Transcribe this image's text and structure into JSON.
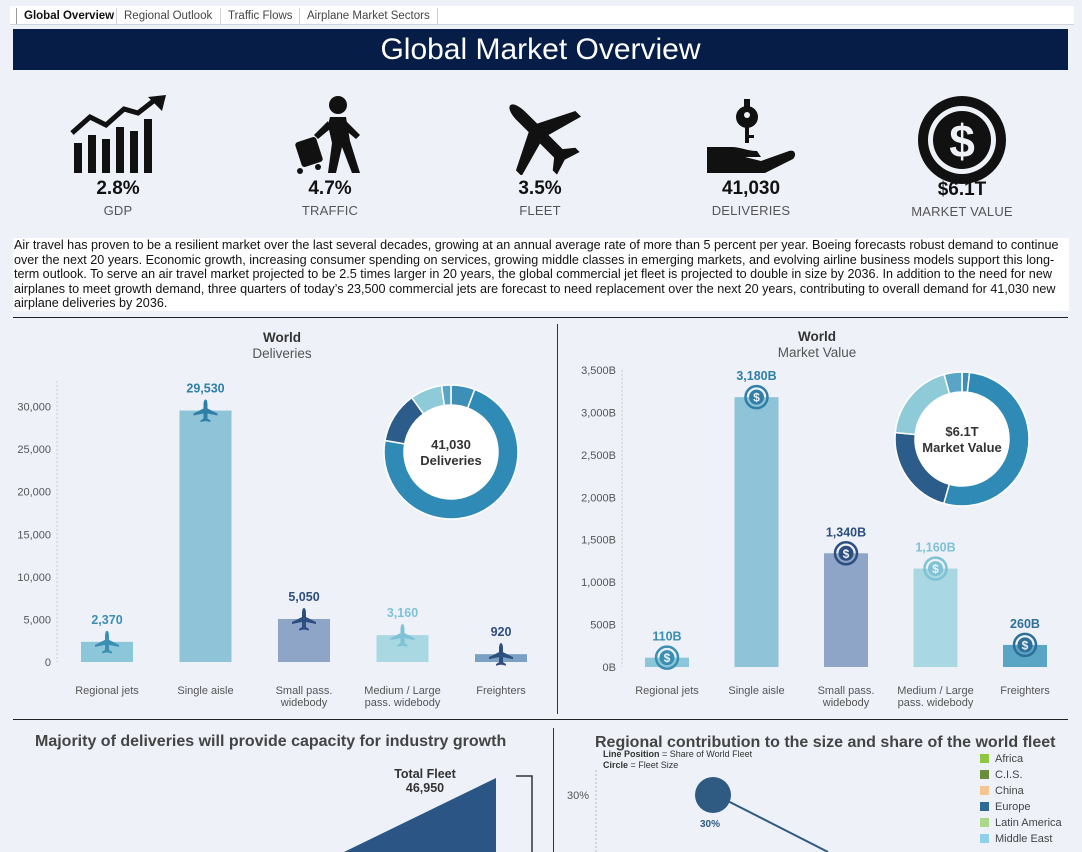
{
  "tabs": [
    "Global Overview",
    "Regional Outlook",
    "Traffic Flows",
    "Airplane Market Sectors"
  ],
  "title": "Global Market Overview",
  "kpis": [
    {
      "icon": "growth-chart-icon",
      "value": "2.8%",
      "label": "GDP"
    },
    {
      "icon": "traveler-luggage-icon",
      "value": "4.7%",
      "label": "TRAFFIC"
    },
    {
      "icon": "airplane-icon",
      "value": "3.5%",
      "label": "FLEET"
    },
    {
      "icon": "hand-with-key-icon",
      "value": "41,030",
      "label": "DELIVERIES"
    },
    {
      "icon": "dollar-coin-icon",
      "value": "$6.1T",
      "label": "MARKET VALUE"
    }
  ],
  "description": "Air travel has proven to be a resilient market over the last several decades, growing at an annual average rate of more than 5 percent per year. Boeing forecasts robust demand to continue over the next 20 years. Economic growth, increasing consumer spending on services, growing middle classes in emerging markets, and evolving airline business models support this long-term outlook. To serve an air travel market projected to be 2.5 times larger in 20 years, the global commercial jet fleet is projected to double in size by 2036. In addition to the need for new airplanes to meet growth demand, three quarters of today’s 23,500 commercial jets are forecast to need replacement over the next 20 years, contributing to overall demand for 41,030 new airplane deliveries by 2036.",
  "chart_data": [
    {
      "type": "bar",
      "title": "World",
      "subtitle": "Deliveries",
      "categories": [
        "Regional jets",
        "Single aisle",
        "Small pass. widebody",
        "Medium / Large pass. widebody",
        "Freighters"
      ],
      "values": [
        2370,
        29530,
        5050,
        3160,
        920
      ],
      "value_labels": [
        "2,370",
        "29,530",
        "5,050",
        "3,160",
        "920"
      ],
      "colors": [
        "#8bc7d8",
        "#8fc3d8",
        "#8ea5c7",
        "#a9d7e2",
        "#7aa0c4"
      ],
      "label_colors": [
        "#3a8fb2",
        "#2f7fa8",
        "#2c4f80",
        "#7ec2d6",
        "#2c4f80"
      ],
      "yticks": [
        0,
        5000,
        10000,
        15000,
        20000,
        25000,
        30000
      ],
      "ytick_labels": [
        "0",
        "5,000",
        "10,000",
        "15,000",
        "20,000",
        "25,000",
        "30,000"
      ],
      "ylim": [
        0,
        33000
      ],
      "marker_icon": "airplane-icon",
      "donut": {
        "center_value": "41,030",
        "center_label": "Deliveries",
        "values": [
          2370,
          29530,
          5050,
          3160,
          920
        ],
        "colors": [
          "#3e8fb7",
          "#2f8bb5",
          "#2b5c8a",
          "#8fcad8",
          "#5aa4c6"
        ]
      }
    },
    {
      "type": "bar",
      "title": "World",
      "subtitle": "Market Value",
      "categories": [
        "Regional jets",
        "Single aisle",
        "Small pass. widebody",
        "Medium / Large pass. widebody",
        "Freighters"
      ],
      "values": [
        110,
        3180,
        1340,
        1160,
        260
      ],
      "value_labels": [
        "110B",
        "3,180B",
        "1,340B",
        "1,160B",
        "260B"
      ],
      "colors": [
        "#8bc7d8",
        "#8fc3d8",
        "#8ea5c7",
        "#a9d7e2",
        "#5aa4c6"
      ],
      "label_colors": [
        "#3a8fb2",
        "#2f7fa8",
        "#2c4f80",
        "#7ec2d6",
        "#2c6f98"
      ],
      "yticks": [
        0,
        500,
        1000,
        1500,
        2000,
        2500,
        3000,
        3500
      ],
      "ytick_labels": [
        "0B",
        "500B",
        "1,000B",
        "1,500B",
        "2,000B",
        "2,500B",
        "3,000B",
        "3,500B"
      ],
      "ylim": [
        0,
        3500
      ],
      "marker_icon": "dollar-coin-icon",
      "donut": {
        "center_value": "$6.1T",
        "center_label": "Market Value",
        "values": [
          110,
          3180,
          1340,
          1160,
          260
        ],
        "colors": [
          "#3e8fb7",
          "#2f8bb5",
          "#2b5c8a",
          "#8fcad8",
          "#5aa4c6"
        ]
      }
    }
  ],
  "capacity": {
    "title": "Majority of deliveries will provide capacity for industry growth",
    "total_label": "Total Fleet",
    "total_value": "46,950"
  },
  "regional": {
    "title": "Regional contribution to the size and share of the world fleet",
    "note_line_key": "Line Position",
    "note_line_val": "= Share of World Fleet",
    "note_circle_key": "Circle",
    "note_circle_val": "= Fleet Size",
    "y_tick": "30%",
    "point_label": "30%",
    "legend": [
      {
        "name": "Africa",
        "color": "#8dc63f"
      },
      {
        "name": "C.I.S.",
        "color": "#6a8e3a"
      },
      {
        "name": "China",
        "color": "#f7c58f"
      },
      {
        "name": "Europe",
        "color": "#2f6a93"
      },
      {
        "name": "Latin America",
        "color": "#a9d88a"
      },
      {
        "name": "Middle East",
        "color": "#8fd0ea"
      }
    ]
  }
}
